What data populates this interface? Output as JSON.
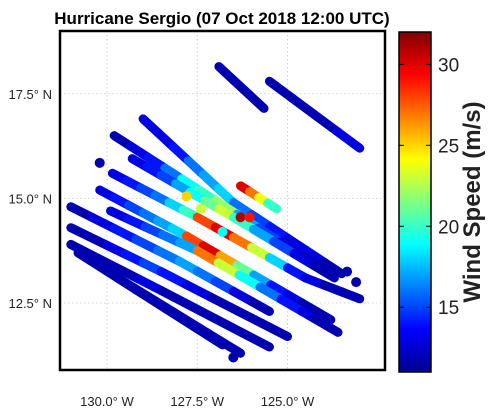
{
  "chart_data": {
    "type": "scatter",
    "title": "Hurricane Sergio (07 Oct 2018 12:00 UTC)",
    "colorbar_label": "Wind Speed (m/s)",
    "colormap": "jet",
    "clim": [
      11,
      32
    ],
    "colorbar_ticks": [
      "15",
      "20",
      "25",
      "30"
    ],
    "colorbar_tick_values": [
      15,
      20,
      25,
      30
    ],
    "x_ticks": [
      "130.0° W",
      "127.5° W",
      "125.0° W"
    ],
    "x_tick_values": [
      -130.0,
      -127.5,
      -125.0
    ],
    "y_ticks": [
      "17.5° N",
      "15.0° N",
      "12.5° N"
    ],
    "y_tick_values": [
      17.5,
      15.0,
      12.5
    ],
    "xlim": [
      -131.3,
      -122.3
    ],
    "ylim": [
      10.9,
      19.0
    ],
    "grid": true,
    "tracks": [
      {
        "start": [
          -126.9,
          18.15
        ],
        "end": [
          -125.65,
          17.15
        ],
        "speeds": [
          12,
          12,
          12
        ]
      },
      {
        "start": [
          -125.5,
          17.8
        ],
        "end": [
          -123.0,
          16.2
        ],
        "speeds": [
          12,
          12,
          12,
          13
        ]
      },
      {
        "start": [
          -129.0,
          16.9
        ],
        "end": [
          -126.5,
          14.9
        ],
        "speeds": [
          13,
          13,
          14,
          16,
          17,
          18
        ]
      },
      {
        "start": [
          -126.5,
          14.9
        ],
        "end": [
          -123.5,
          13.2
        ],
        "speeds": [
          16,
          15,
          14,
          13,
          13,
          12
        ]
      },
      {
        "start": [
          -129.8,
          16.5
        ],
        "end": [
          -127.0,
          14.95
        ],
        "speeds": [
          12,
          13,
          14,
          16,
          19,
          20
        ]
      },
      {
        "start": [
          -127.0,
          14.95
        ],
        "end": [
          -124.0,
          13.3
        ],
        "speeds": [
          22,
          17,
          15,
          13,
          12
        ]
      },
      {
        "start": [
          -129.3,
          15.95
        ],
        "end": [
          -126.5,
          14.55
        ],
        "speeds": [
          13,
          14,
          15,
          17,
          19,
          21,
          23
        ]
      },
      {
        "start": [
          -126.5,
          14.55
        ],
        "end": [
          -123.7,
          13.1
        ],
        "speeds": [
          20,
          17,
          15,
          13,
          12
        ]
      },
      {
        "start": [
          -126.3,
          15.3
        ],
        "end": [
          -125.3,
          14.75
        ],
        "speeds": [
          30,
          27,
          24,
          20
        ]
      },
      {
        "start": [
          -129.85,
          15.6
        ],
        "end": [
          -127.5,
          14.55
        ],
        "speeds": [
          13,
          14,
          15,
          16,
          18,
          20
        ]
      },
      {
        "start": [
          -127.5,
          14.55
        ],
        "end": [
          -124.5,
          13.1
        ],
        "speeds": [
          28,
          30,
          27,
          23,
          18,
          14
        ]
      },
      {
        "start": [
          -124.5,
          13.1
        ],
        "end": [
          -123.0,
          12.6
        ],
        "speeds": [
          13,
          12,
          12
        ]
      },
      {
        "start": [
          -130.2,
          15.2
        ],
        "end": [
          -127.8,
          14.1
        ],
        "speeds": [
          13,
          14,
          15,
          16,
          17,
          18
        ]
      },
      {
        "start": [
          -127.8,
          14.1
        ],
        "end": [
          -125.0,
          12.7
        ],
        "speeds": [
          28,
          30,
          26,
          21,
          17,
          14
        ]
      },
      {
        "start": [
          -125.0,
          12.7
        ],
        "end": [
          -123.8,
          12.1
        ],
        "speeds": [
          13,
          12,
          12
        ]
      },
      {
        "start": [
          -129.9,
          14.7
        ],
        "end": [
          -127.5,
          13.75
        ],
        "speeds": [
          13,
          14,
          15,
          16,
          17
        ]
      },
      {
        "start": [
          -127.5,
          13.75
        ],
        "end": [
          -124.6,
          12.3
        ],
        "speeds": [
          27,
          23,
          19,
          16,
          14
        ]
      },
      {
        "start": [
          -124.6,
          12.3
        ],
        "end": [
          -123.6,
          11.8
        ],
        "speeds": [
          13,
          12,
          12
        ]
      },
      {
        "start": [
          -131.0,
          14.8
        ],
        "end": [
          -128.0,
          13.5
        ],
        "speeds": [
          12,
          13,
          14,
          15,
          16
        ]
      },
      {
        "start": [
          -128.0,
          13.5
        ],
        "end": [
          -125.5,
          12.3
        ],
        "speeds": [
          17,
          16,
          15,
          13,
          12
        ]
      },
      {
        "start": [
          -131.0,
          14.3
        ],
        "end": [
          -128.5,
          13.25
        ],
        "speeds": [
          12,
          12,
          13,
          14,
          15
        ]
      },
      {
        "start": [
          -128.5,
          13.25
        ],
        "end": [
          -125.0,
          11.7
        ],
        "speeds": [
          14,
          13,
          12,
          12,
          12
        ]
      },
      {
        "start": [
          -131.0,
          13.9
        ],
        "end": [
          -128.5,
          12.8
        ],
        "speeds": [
          12,
          12,
          12,
          13
        ]
      },
      {
        "start": [
          -128.5,
          12.8
        ],
        "end": [
          -125.5,
          11.45
        ],
        "speeds": [
          12,
          12,
          12,
          12
        ]
      },
      {
        "start": [
          -130.8,
          13.7
        ],
        "end": [
          -126.8,
          11.5
        ],
        "speeds": [
          12,
          12,
          12,
          12,
          12
        ]
      },
      {
        "start": [
          -129.7,
          13.1
        ],
        "end": [
          -126.3,
          11.3
        ],
        "speeds": [
          12,
          12,
          12,
          12
        ]
      }
    ],
    "points": [
      {
        "x": -130.2,
        "y": 15.85,
        "v": 12
      },
      {
        "x": -127.8,
        "y": 15.05,
        "v": 25
      },
      {
        "x": -126.3,
        "y": 14.55,
        "v": 31
      },
      {
        "x": -126.05,
        "y": 14.55,
        "v": 29
      },
      {
        "x": -127.4,
        "y": 14.75,
        "v": 23
      },
      {
        "x": -126.8,
        "y": 14.2,
        "v": 19
      },
      {
        "x": -123.35,
        "y": 13.25,
        "v": 12
      },
      {
        "x": -123.1,
        "y": 13.0,
        "v": 12
      },
      {
        "x": -126.5,
        "y": 11.2,
        "v": 12
      }
    ]
  }
}
